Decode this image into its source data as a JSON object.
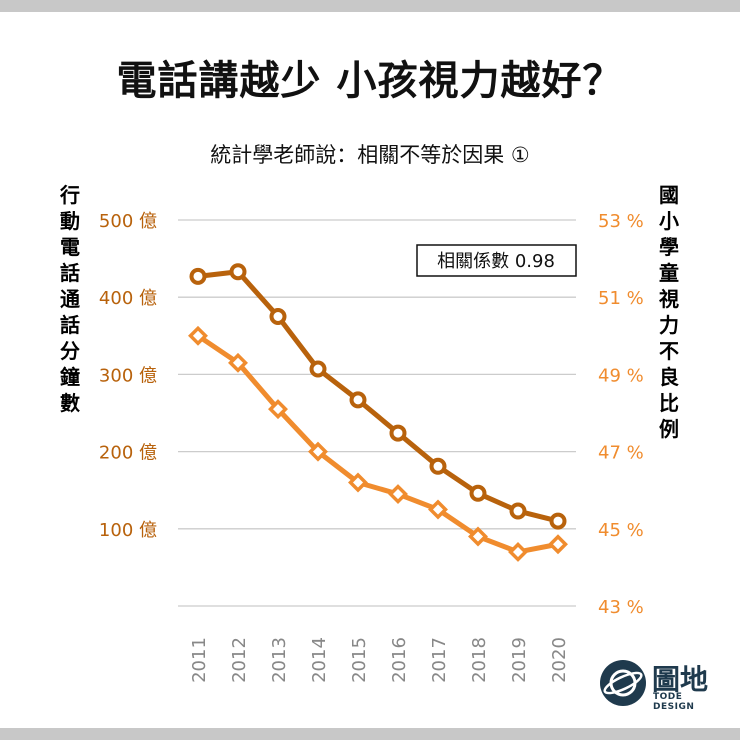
{
  "title": "電話講越少 小孩視力越好？",
  "subtitle": "統計學老師說：相關不等於因果 ①",
  "left_axis_label": "行動電話通話分鐘數",
  "right_axis_label": "國小學童視力不良比例",
  "correlation_label": "相關係數 0.98",
  "brand": {
    "name": "圖地",
    "tagline": "TODE DESIGN"
  },
  "colors": {
    "dark_series": "#b8620c",
    "light_series": "#f08c2e",
    "left_axis_text": "#b8620c",
    "right_axis_text": "#f08c2e",
    "grid": "#cccccc",
    "brand": "#1f3a4d"
  },
  "chart_data": {
    "type": "line",
    "x": [
      "2011",
      "2012",
      "2013",
      "2014",
      "2015",
      "2016",
      "2017",
      "2018",
      "2019",
      "2020"
    ],
    "series": [
      {
        "name": "行動電話通話分鐘數",
        "axis": "left",
        "unit": "億",
        "marker": "circle",
        "values": [
          427,
          433,
          375,
          307,
          267,
          224,
          181,
          146,
          123,
          110
        ]
      },
      {
        "name": "國小學童視力不良比例",
        "axis": "right",
        "unit": "%",
        "marker": "diamond",
        "values": [
          50.0,
          49.3,
          48.1,
          47.0,
          46.2,
          45.9,
          45.5,
          44.8,
          44.4,
          44.6
        ]
      }
    ],
    "left_axis": {
      "range": [
        0,
        500
      ],
      "ticks": [
        100,
        200,
        300,
        400,
        500
      ],
      "tick_labels": [
        "100 億",
        "200 億",
        "300 億",
        "400 億",
        "500 億"
      ]
    },
    "right_axis": {
      "range": [
        43,
        53
      ],
      "ticks": [
        43,
        45,
        47,
        49,
        51,
        53
      ],
      "tick_labels": [
        "43 %",
        "45 %",
        "47 %",
        "49 %",
        "51 %",
        "53 %"
      ]
    },
    "grid": true
  }
}
